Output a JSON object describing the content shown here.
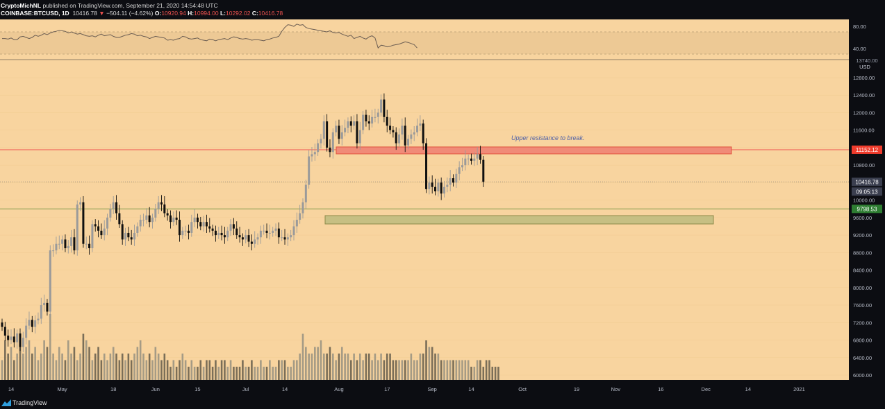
{
  "header": {
    "author": "CryptoMichNL",
    "published": " published on TradingView.com, September 21, 2020 14:54:48 UTC",
    "symbol": "COINBASE:BTCUSD, 1D",
    "last": "10416.78",
    "change": "−504.11 (−4.62%)",
    "o_label": "O:",
    "o": "10920.94",
    "h_label": "H:",
    "h": "10994.00",
    "l_label": "L:",
    "l": "10292.02",
    "c_label": "C:",
    "c": "10416.78"
  },
  "footer": {
    "brand": "TradingView"
  },
  "colors": {
    "background": "#f8d49f",
    "axis_bg": "#0c0d12",
    "up": "#9a9a9a",
    "down": "#101010",
    "resistance": "#f08b78",
    "support": "#c6bf83"
  },
  "chart_data": [
    {
      "type": "line",
      "pane": "rsi",
      "yticks": [
        "80.00",
        "40.00"
      ],
      "ylim": [
        20,
        90
      ],
      "band": [
        30,
        70
      ],
      "values": [
        58,
        58,
        57,
        59,
        56,
        56,
        61,
        62,
        60,
        58,
        60,
        64,
        62,
        64,
        67,
        65,
        68,
        70,
        71,
        73,
        72,
        71,
        68,
        70,
        68,
        66,
        67,
        65,
        63,
        62,
        63,
        61,
        64,
        66,
        63,
        64,
        65,
        62,
        60,
        60,
        62,
        64,
        65,
        67,
        66,
        63,
        64,
        62,
        61,
        58,
        60,
        62,
        61,
        60,
        59,
        55,
        56,
        55,
        57,
        58,
        62,
        61,
        58,
        57,
        58,
        59,
        56,
        55,
        54,
        57,
        56,
        54,
        56,
        57,
        58,
        56,
        59,
        61,
        60,
        58,
        57,
        58,
        57,
        55,
        56,
        56,
        55,
        54,
        56,
        57,
        59,
        60,
        62,
        71,
        78,
        83,
        82,
        80,
        84,
        82,
        83,
        78,
        76,
        75,
        74,
        73,
        72,
        71,
        70,
        72,
        69,
        68,
        69,
        66,
        64,
        62,
        64,
        58,
        60,
        62,
        59,
        57,
        61,
        63,
        59,
        41,
        46,
        45,
        43,
        44,
        46,
        47,
        48,
        50,
        52,
        51,
        49,
        47,
        41
      ]
    },
    {
      "type": "candlestick",
      "pane": "price",
      "unit_label": "USD",
      "ylim": [
        5840,
        13600
      ],
      "yticks": [
        "12800.00",
        "12400.00",
        "12000.00",
        "11600.00",
        "11200.00",
        "10800.00",
        "10400.00",
        "10000.00",
        "9600.00",
        "9200.00",
        "8800.00",
        "8400.00",
        "8000.00",
        "7600.00",
        "7200.00",
        "6800.00",
        "6400.00",
        "6000.00"
      ],
      "xticks": [
        {
          "label": "14",
          "i": 3
        },
        {
          "label": "May",
          "i": 20
        },
        {
          "label": "18",
          "i": 37
        },
        {
          "label": "Jun",
          "i": 51
        },
        {
          "label": "15",
          "i": 65
        },
        {
          "label": "Jul",
          "i": 81
        },
        {
          "label": "14",
          "i": 94
        },
        {
          "label": "Aug",
          "i": 112
        },
        {
          "label": "17",
          "i": 128
        },
        {
          "label": "Sep",
          "i": 143
        },
        {
          "label": "14",
          "i": 156
        },
        {
          "label": "Oct",
          "i": 173
        },
        {
          "label": "19",
          "i": 191
        },
        {
          "label": "Nov",
          "i": 204
        },
        {
          "label": "16",
          "i": 219
        },
        {
          "label": "Dec",
          "i": 234
        },
        {
          "label": "14",
          "i": 248
        },
        {
          "label": "2021",
          "i": 265
        }
      ],
      "closes": [
        7100,
        6900,
        6800,
        6880,
        6750,
        6950,
        6640,
        6850,
        7130,
        7260,
        7100,
        7250,
        7290,
        7600,
        7650,
        7450,
        8850,
        8850,
        9000,
        9000,
        9100,
        8900,
        8950,
        9150,
        8850,
        9900,
        9950,
        9000,
        9000,
        8900,
        9450,
        9400,
        9300,
        9200,
        9350,
        9600,
        9800,
        9950,
        9700,
        9450,
        9100,
        9250,
        9150,
        9100,
        9250,
        9400,
        9550,
        9550,
        9650,
        9500,
        9600,
        9800,
        9950,
        9900,
        9700,
        9650,
        9500,
        9600,
        9550,
        9200,
        9300,
        9300,
        9250,
        9500,
        9600,
        9500,
        9400,
        9500,
        9400,
        9350,
        9300,
        9200,
        9250,
        9200,
        9150,
        9300,
        9450,
        9350,
        9200,
        9150,
        9100,
        9200,
        9050,
        9000,
        9100,
        9150,
        9300,
        9300,
        9250,
        9250,
        9300,
        9350,
        9150,
        9150,
        9100,
        9150,
        9200,
        9400,
        9550,
        9700,
        9950,
        10350,
        11000,
        11050,
        11100,
        11300,
        11400,
        11800,
        11200,
        11100,
        11550,
        11700,
        11400,
        11550,
        11650,
        11800,
        11700,
        11800,
        11300,
        11600,
        11950,
        11800,
        11750,
        11900,
        11900,
        12000,
        12300,
        11900,
        11700,
        11600,
        11550,
        11300,
        11500,
        11700,
        11250,
        11400,
        11500,
        11550,
        11700,
        11750,
        11300,
        10250,
        10400,
        10300,
        10200,
        10400,
        10150,
        10300,
        10350,
        10500,
        10400,
        10600,
        10750,
        10800,
        10950,
        10950,
        10900,
        10950,
        11050,
        10920,
        10417
      ]
    },
    {
      "type": "bar",
      "pane": "volume",
      "values": [
        3,
        6,
        4,
        5,
        3,
        4,
        7,
        4,
        5,
        6,
        4,
        5,
        3,
        4,
        6,
        5,
        10,
        4,
        3,
        5,
        4,
        3,
        6,
        4,
        5,
        3,
        4,
        7,
        6,
        5,
        3,
        4,
        5,
        3,
        4,
        3,
        4,
        5,
        4,
        3,
        4,
        3,
        4,
        3,
        4,
        5,
        6,
        4,
        3,
        4,
        3,
        5,
        4,
        3,
        4,
        3,
        2,
        3,
        2,
        3,
        4,
        3,
        2,
        3,
        2,
        2,
        3,
        2,
        3,
        3,
        2,
        3,
        2,
        3,
        3,
        2,
        3,
        2,
        2,
        2,
        3,
        2,
        2,
        3,
        2,
        2,
        3,
        2,
        2,
        3,
        2,
        2,
        3,
        3,
        3,
        2,
        2,
        3,
        3,
        4,
        7,
        5,
        4,
        4,
        5,
        5,
        6,
        4,
        4,
        5,
        4,
        3,
        4,
        5,
        4,
        4,
        3,
        4,
        3,
        4,
        3,
        4,
        4,
        3,
        4,
        3,
        4,
        3,
        4,
        4,
        3,
        3,
        3,
        3,
        3,
        3,
        4,
        3,
        3,
        4,
        4,
        6,
        5,
        5,
        4,
        4,
        3,
        3,
        3,
        3,
        3,
        3,
        3,
        3,
        3,
        3,
        2,
        2,
        3,
        3,
        2,
        3,
        3,
        2,
        2,
        2
      ]
    }
  ],
  "annotations": {
    "resistance_text": "Upper resistance to break.",
    "resistance_price": "11152.12",
    "current_price": "10416.78",
    "countdown": "09:05:13",
    "support_price": "9798.53",
    "rsi_top_label": "13740.00"
  }
}
